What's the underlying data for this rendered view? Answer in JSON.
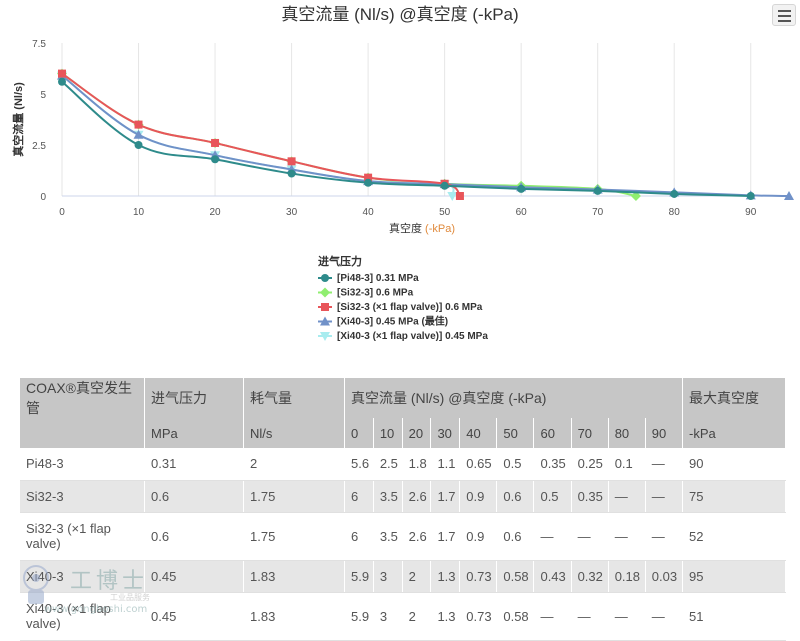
{
  "chart_data": {
    "type": "line",
    "title": "真空流量 (Nl/s) @真空度 (-kPa)",
    "xlabel": "真空度",
    "xlabel_unit": "(-kPa)",
    "ylabel": "真空流量 (Nl/s)",
    "xlim": [
      0,
      95
    ],
    "ylim": [
      0,
      7.5
    ],
    "xticks": [
      0,
      10,
      20,
      30,
      40,
      50,
      60,
      70,
      80,
      90
    ],
    "yticks": [
      0,
      2.5,
      5,
      7.5
    ],
    "ytick_labels": [
      "0",
      "2.5",
      "5",
      "7.5"
    ],
    "grid": "vertical",
    "legend_title": "进气压力",
    "legend_position": "bottom-center",
    "series": [
      {
        "name": "[Pi48-3] 0.31 MPa",
        "color": "#2e8b8b",
        "marker": "circle",
        "points": [
          [
            0,
            5.6
          ],
          [
            10,
            2.5
          ],
          [
            20,
            1.8
          ],
          [
            30,
            1.1
          ],
          [
            40,
            0.65
          ],
          [
            50,
            0.5
          ],
          [
            60,
            0.35
          ],
          [
            70,
            0.25
          ],
          [
            80,
            0.1
          ],
          [
            90,
            0
          ]
        ]
      },
      {
        "name": "[Si32-3] 0.6 MPa",
        "color": "#90ee70",
        "marker": "diamond",
        "points": [
          [
            0,
            6
          ],
          [
            10,
            3.5
          ],
          [
            20,
            2.6
          ],
          [
            30,
            1.7
          ],
          [
            40,
            0.9
          ],
          [
            50,
            0.6
          ],
          [
            60,
            0.5
          ],
          [
            70,
            0.35
          ],
          [
            75,
            0
          ]
        ]
      },
      {
        "name": "[Si32-3 (×1 flap valve)] 0.6 MPa",
        "color": "#e8555a",
        "marker": "square",
        "points": [
          [
            0,
            6
          ],
          [
            10,
            3.5
          ],
          [
            20,
            2.6
          ],
          [
            30,
            1.7
          ],
          [
            40,
            0.9
          ],
          [
            50,
            0.6
          ],
          [
            52,
            0
          ]
        ]
      },
      {
        "name": "[Xi40-3] 0.45 MPa (最佳)",
        "color": "#7091c8",
        "marker": "triangle",
        "points": [
          [
            0,
            5.9
          ],
          [
            10,
            3
          ],
          [
            20,
            2
          ],
          [
            30,
            1.3
          ],
          [
            40,
            0.73
          ],
          [
            50,
            0.58
          ],
          [
            60,
            0.43
          ],
          [
            70,
            0.32
          ],
          [
            80,
            0.18
          ],
          [
            90,
            0.03
          ],
          [
            95,
            0
          ]
        ]
      },
      {
        "name": "[Xi40-3 (×1 flap valve)] 0.45 MPa",
        "color": "#a8ecef",
        "marker": "triangle-down",
        "points": [
          [
            0,
            5.9
          ],
          [
            10,
            3
          ],
          [
            20,
            2
          ],
          [
            30,
            1.3
          ],
          [
            40,
            0.73
          ],
          [
            50,
            0.58
          ],
          [
            51,
            0
          ]
        ]
      }
    ]
  },
  "menu_button": {
    "icon": "hamburger-menu-icon"
  },
  "table": {
    "header1": {
      "product": "COAX®真空发生管",
      "pressure": "进气压力",
      "consumption": "耗气量",
      "flow": "真空流量 (Nl/s) @真空度 (-kPa)",
      "max_vacuum": "最大真空度"
    },
    "header2": {
      "pressure_unit": "MPa",
      "consumption_unit": "Nl/s",
      "vacuum_levels": [
        "0",
        "10",
        "20",
        "30",
        "40",
        "50",
        "60",
        "70",
        "80",
        "90"
      ],
      "max_unit": "-kPa"
    },
    "rows": [
      {
        "product": "Pi48-3",
        "pressure": "0.31",
        "consumption": "2",
        "flows": [
          "5.6",
          "2.5",
          "1.8",
          "1.1",
          "0.65",
          "0.5",
          "0.35",
          "0.25",
          "0.1",
          "—"
        ],
        "max": "90"
      },
      {
        "product": "Si32-3",
        "pressure": "0.6",
        "consumption": "1.75",
        "flows": [
          "6",
          "3.5",
          "2.6",
          "1.7",
          "0.9",
          "0.6",
          "0.5",
          "0.35",
          "—",
          "—"
        ],
        "max": "75"
      },
      {
        "product": "Si32-3 (×1 flap valve)",
        "pressure": "0.6",
        "consumption": "1.75",
        "flows": [
          "6",
          "3.5",
          "2.6",
          "1.7",
          "0.9",
          "0.6",
          "—",
          "—",
          "—",
          "—"
        ],
        "max": "52"
      },
      {
        "product": "Xi40-3",
        "pressure": "0.45",
        "consumption": "1.83",
        "flows": [
          "5.9",
          "3",
          "2",
          "1.3",
          "0.73",
          "0.58",
          "0.43",
          "0.32",
          "0.18",
          "0.03"
        ],
        "max": "95"
      },
      {
        "product": "Xi40-3 (×1 flap valve)",
        "pressure": "0.45",
        "consumption": "1.83",
        "flows": [
          "5.9",
          "3",
          "2",
          "1.3",
          "0.73",
          "0.58",
          "—",
          "—",
          "—",
          "—"
        ],
        "max": "51"
      }
    ]
  },
  "watermark": {
    "brand": "工博士",
    "url": "www.gongboshi.com",
    "tagline": "工业品服务"
  }
}
